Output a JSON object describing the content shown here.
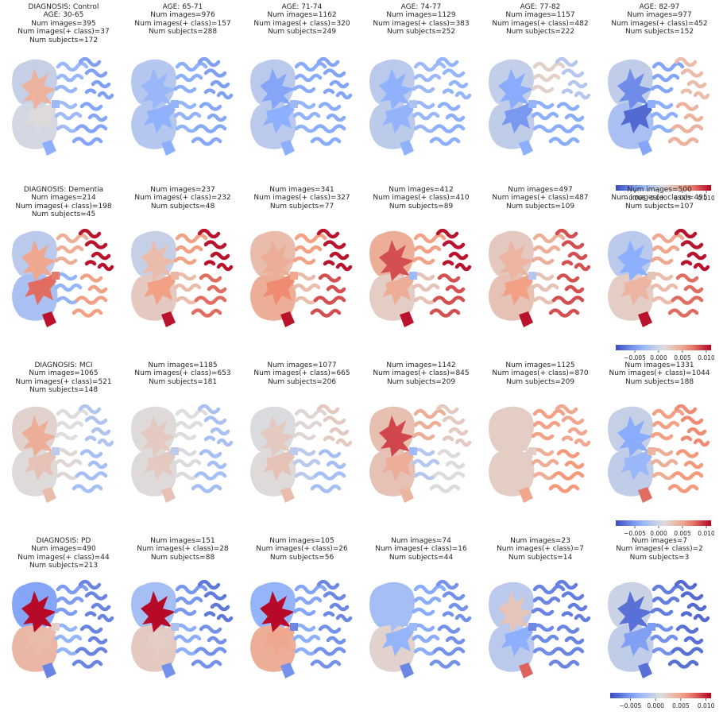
{
  "chart_data": {
    "type": "heatmap",
    "colormap": "coolwarm",
    "colormap_range": [
      -0.009,
      0.011
    ],
    "colorbar_ticks": [
      "−0.005",
      "0.000",
      "0.005",
      "0.010"
    ],
    "colorbar_tick_values": [
      -0.005,
      0.0,
      0.005,
      0.01
    ],
    "regions": [
      "front_lobe",
      "back_lobe",
      "ventricle_top",
      "ventricle_bottom",
      "cortex_upper_left",
      "cortex_upper_right",
      "cortex_lower_left",
      "cortex_lower_right",
      "bottom_tail",
      "center_spot"
    ],
    "rows": [
      {
        "diagnosis": "Control",
        "panels": [
          {
            "title_lines": [
              "DIAGNOSIS: Control",
              "AGE: 30-65",
              "Num images=395",
              "Num images(+ class)=37",
              "Num subjects=172"
            ],
            "values": {
              "front_lobe": -0.0005,
              "back_lobe": 0.0003,
              "ventricle_top": 0.0042,
              "ventricle_bottom": 0.0012,
              "cortex_upper_left": -0.0032,
              "cortex_upper_right": -0.0048,
              "cortex_lower_left": -0.0028,
              "cortex_lower_right": -0.0045,
              "bottom_tail": -0.004,
              "center_spot": -0.003
            }
          },
          {
            "title_lines": [
              "AGE: 65-71",
              "Num images=976",
              "Num images(+ class)=157",
              "Num subjects=288"
            ],
            "values": {
              "front_lobe": -0.0015,
              "back_lobe": -0.0015,
              "ventricle_top": -0.0032,
              "ventricle_bottom": -0.0038,
              "cortex_upper_left": -0.004,
              "cortex_upper_right": -0.0048,
              "cortex_lower_left": -0.0035,
              "cortex_lower_right": -0.0044,
              "bottom_tail": -0.004,
              "center_spot": -0.0035
            }
          },
          {
            "title_lines": [
              "AGE: 71-74",
              "Num images=1162",
              "Num images(+ class)=320",
              "Num subjects=249"
            ],
            "values": {
              "front_lobe": -0.0012,
              "back_lobe": -0.0012,
              "ventricle_top": -0.0045,
              "ventricle_bottom": -0.004,
              "cortex_upper_left": -0.0042,
              "cortex_upper_right": -0.0046,
              "cortex_lower_left": -0.0036,
              "cortex_lower_right": -0.0042,
              "bottom_tail": -0.004,
              "center_spot": -0.003
            }
          },
          {
            "title_lines": [
              "AGE: 74-77",
              "Num images=1129",
              "Num images(+ class)=383",
              "Num subjects=252"
            ],
            "values": {
              "front_lobe": -0.0012,
              "back_lobe": -0.001,
              "ventricle_top": -0.0038,
              "ventricle_bottom": -0.0036,
              "cortex_upper_left": -0.003,
              "cortex_upper_right": -0.0035,
              "cortex_lower_left": -0.0032,
              "cortex_lower_right": -0.004,
              "bottom_tail": -0.0038,
              "center_spot": -0.002
            }
          },
          {
            "title_lines": [
              "AGE: 77-82",
              "Num images=1157",
              "Num images(+ class)=482",
              "Num subjects=222"
            ],
            "values": {
              "front_lobe": -0.0006,
              "back_lobe": -0.0008,
              "ventricle_top": -0.0042,
              "ventricle_bottom": -0.0052,
              "cortex_upper_left": 0.002,
              "cortex_upper_right": -0.0015,
              "cortex_lower_left": -0.004,
              "cortex_lower_right": -0.0042,
              "bottom_tail": -0.004,
              "center_spot": -0.0035
            }
          },
          {
            "title_lines": [
              "AGE: 82-97",
              "Num images=977",
              "Num images(+ class)=452",
              "Num subjects=152"
            ],
            "values": {
              "front_lobe": -0.0008,
              "back_lobe": -0.0022,
              "ventricle_top": -0.0058,
              "ventricle_bottom": -0.0075,
              "cortex_upper_left": -0.0045,
              "cortex_upper_right": 0.0035,
              "cortex_lower_left": -0.004,
              "cortex_lower_right": 0.0042,
              "bottom_tail": -0.0045,
              "center_spot": -0.004
            }
          }
        ]
      },
      {
        "diagnosis": "Dementia",
        "panels": [
          {
            "title_lines": [
              "DIAGNOSIS: Dementia",
              "Num images=214",
              "Num images(+ class)=198",
              "Num subjects=45"
            ],
            "values": {
              "front_lobe": -0.0012,
              "back_lobe": -0.0022,
              "ventricle_top": 0.005,
              "ventricle_bottom": 0.0075,
              "cortex_upper_left": 0.0045,
              "cortex_upper_right": 0.0105,
              "cortex_lower_left": -0.0035,
              "cortex_lower_right": 0.0055,
              "bottom_tail": 0.0105,
              "center_spot": 0.007
            }
          },
          {
            "title_lines": [
              "Num images=237",
              "Num images(+ class)=232",
              "Num subjects=48"
            ],
            "values": {
              "front_lobe": -0.0005,
              "back_lobe": 0.0025,
              "ventricle_top": 0.0035,
              "ventricle_bottom": 0.0055,
              "cortex_upper_left": 0.0055,
              "cortex_upper_right": 0.0105,
              "cortex_lower_left": 0.0035,
              "cortex_lower_right": 0.0075,
              "bottom_tail": 0.0105,
              "center_spot": 0.004
            }
          },
          {
            "title_lines": [
              "Num images=341",
              "Num images(+ class)=327",
              "Num subjects=77"
            ],
            "values": {
              "front_lobe": 0.0035,
              "back_lobe": 0.0045,
              "ventricle_top": 0.0045,
              "ventricle_bottom": 0.0065,
              "cortex_upper_left": 0.0055,
              "cortex_upper_right": 0.0105,
              "cortex_lower_left": 0.0035,
              "cortex_lower_right": 0.0085,
              "bottom_tail": 0.0105,
              "center_spot": 0.005
            }
          },
          {
            "title_lines": [
              "Num images=412",
              "Num images(+ class)=410",
              "Num subjects=89"
            ],
            "values": {
              "front_lobe": 0.0045,
              "back_lobe": 0.0022,
              "ventricle_top": 0.0085,
              "ventricle_bottom": 0.0045,
              "cortex_upper_left": 0.0055,
              "cortex_upper_right": 0.0105,
              "cortex_lower_left": 0.003,
              "cortex_lower_right": 0.0085,
              "bottom_tail": 0.0105,
              "center_spot": -0.003
            }
          },
          {
            "title_lines": [
              "Num images=497",
              "Num images(+ class)=487",
              "Num subjects=109"
            ],
            "values": {
              "front_lobe": 0.0025,
              "back_lobe": 0.003,
              "ventricle_top": 0.004,
              "ventricle_bottom": 0.0055,
              "cortex_upper_left": 0.0045,
              "cortex_upper_right": 0.0085,
              "cortex_lower_left": 0.003,
              "cortex_lower_right": 0.0085,
              "bottom_tail": 0.0105,
              "center_spot": -0.0015
            }
          },
          {
            "title_lines": [
              "Num images=500",
              "Num images(+ class)=495",
              "Num subjects=107"
            ],
            "values": {
              "front_lobe": -0.0012,
              "back_lobe": 0.0022,
              "ventricle_top": -0.004,
              "ventricle_bottom": 0.004,
              "cortex_upper_left": 0.005,
              "cortex_upper_right": 0.0105,
              "cortex_lower_left": 0.0035,
              "cortex_lower_right": 0.0075,
              "bottom_tail": 0.0105,
              "center_spot": 0.003
            }
          }
        ]
      },
      {
        "diagnosis": "MCI",
        "panels": [
          {
            "title_lines": [
              "DIAGNOSIS: MCI",
              "Num images=1065",
              "Num images(+ class)=521",
              "Num subjects=148"
            ],
            "values": {
              "front_lobe": 0.0018,
              "back_lobe": 0.0012,
              "ventricle_top": 0.0045,
              "ventricle_bottom": 0.003,
              "cortex_upper_left": 0.001,
              "cortex_upper_right": -0.0018,
              "cortex_lower_left": 0.0015,
              "cortex_lower_right": -0.0025,
              "bottom_tail": 0.0035,
              "center_spot": -0.001
            }
          },
          {
            "title_lines": [
              "Num images=1185",
              "Num images(+ class)=653",
              "Num subjects=181"
            ],
            "values": {
              "front_lobe": 0.0012,
              "back_lobe": 0.0012,
              "ventricle_top": 0.0025,
              "ventricle_bottom": 0.0025,
              "cortex_upper_left": 0.001,
              "cortex_upper_right": -0.0022,
              "cortex_lower_left": 0.0008,
              "cortex_lower_right": -0.0025,
              "bottom_tail": 0.003,
              "center_spot": -0.001
            }
          },
          {
            "title_lines": [
              "Num images=1077",
              "Num images(+ class)=665",
              "Num subjects=206"
            ],
            "values": {
              "front_lobe": 0.0008,
              "back_lobe": 0.0012,
              "ventricle_top": 0.0025,
              "ventricle_bottom": 0.003,
              "cortex_upper_left": 0.0015,
              "cortex_upper_right": 0.0025,
              "cortex_lower_left": -0.0012,
              "cortex_lower_right": -0.0025,
              "bottom_tail": 0.0035,
              "center_spot": -0.001
            }
          },
          {
            "title_lines": [
              "Num images=1142",
              "Num images(+ class)=845",
              "Num subjects=209"
            ],
            "values": {
              "front_lobe": 0.0032,
              "back_lobe": 0.003,
              "ventricle_top": 0.0088,
              "ventricle_bottom": 0.0045,
              "cortex_upper_left": 0.0045,
              "cortex_upper_right": 0.0025,
              "cortex_lower_left": -0.0015,
              "cortex_lower_right": 0.0012,
              "bottom_tail": 0.004,
              "center_spot": -0.003
            }
          },
          {
            "title_lines": [
              "Num images=1125",
              "Num images(+ class)=870",
              "Num subjects=209"
            ],
            "values": {
              "front_lobe": 0.0022,
              "back_lobe": 0.0022,
              "ventricle_top": 0.0022,
              "ventricle_bottom": 0.0022,
              "cortex_upper_left": 0.0055,
              "cortex_upper_right": 0.005,
              "cortex_lower_left": 0.0045,
              "cortex_lower_right": 0.006,
              "bottom_tail": 0.005,
              "center_spot": 0.0022
            }
          },
          {
            "title_lines": [
              "Num images=1331",
              "Num images(+ class)=1044",
              "Num subjects=188"
            ],
            "values": {
              "front_lobe": -0.0005,
              "back_lobe": -0.0008,
              "ventricle_top": -0.0042,
              "ventricle_bottom": -0.0032,
              "cortex_upper_left": 0.0055,
              "cortex_upper_right": 0.0065,
              "cortex_lower_left": 0.0045,
              "cortex_lower_right": 0.006,
              "bottom_tail": 0.0075,
              "center_spot": 0.004
            }
          }
        ]
      },
      {
        "diagnosis": "PD",
        "panels": [
          {
            "title_lines": [
              "DIAGNOSIS: PD",
              "Num images=490",
              "Num images(+ class)=44",
              "Num subjects=213"
            ],
            "values": {
              "front_lobe": -0.0045,
              "back_lobe": 0.0038,
              "ventricle_top": 0.0108,
              "ventricle_bottom": 0.0035,
              "cortex_upper_left": -0.005,
              "cortex_upper_right": -0.0062,
              "cortex_lower_left": -0.0035,
              "cortex_lower_right": -0.0062,
              "bottom_tail": -0.0062,
              "center_spot": 0.002
            }
          },
          {
            "title_lines": [
              "Num images=151",
              "Num images(+ class)=28",
              "Num subjects=88"
            ],
            "values": {
              "front_lobe": -0.0025,
              "back_lobe": 0.0025,
              "ventricle_top": 0.0108,
              "ventricle_bottom": 0.0022,
              "cortex_upper_left": -0.0052,
              "cortex_upper_right": -0.0068,
              "cortex_lower_left": -0.004,
              "cortex_lower_right": -0.0055,
              "bottom_tail": -0.0055,
              "center_spot": -0.002
            }
          },
          {
            "title_lines": [
              "Num images=105",
              "Num images(+ class)=26",
              "Num subjects=56"
            ],
            "values": {
              "front_lobe": -0.0035,
              "back_lobe": 0.0045,
              "ventricle_top": 0.0108,
              "ventricle_bottom": 0.005,
              "cortex_upper_left": -0.0045,
              "cortex_upper_right": -0.006,
              "cortex_lower_left": -0.004,
              "cortex_lower_right": -0.0055,
              "bottom_tail": -0.0055,
              "center_spot": -0.006
            }
          },
          {
            "title_lines": [
              "Num images=74",
              "Num images(+ class)=16",
              "Num subjects=44"
            ],
            "values": {
              "front_lobe": -0.0025,
              "back_lobe": 0.0018,
              "ventricle_top": -0.0025,
              "ventricle_bottom": -0.0035,
              "cortex_upper_left": -0.0042,
              "cortex_upper_right": -0.0055,
              "cortex_lower_left": -0.0042,
              "cortex_lower_right": -0.0055,
              "bottom_tail": -0.006,
              "center_spot": -0.003
            }
          },
          {
            "title_lines": [
              "Num images=23",
              "Num images(+ class)=7",
              "Num subjects=14"
            ],
            "values": {
              "front_lobe": -0.0012,
              "back_lobe": -0.0012,
              "ventricle_top": 0.0028,
              "ventricle_bottom": -0.004,
              "cortex_upper_left": -0.0062,
              "cortex_upper_right": -0.0065,
              "cortex_lower_left": -0.0058,
              "cortex_lower_right": -0.0062,
              "bottom_tail": 0.0078,
              "center_spot": -0.006
            }
          },
          {
            "title_lines": [
              "Num images=7",
              "Num images(+ class)=2",
              "Num subjects=3"
            ],
            "values": {
              "front_lobe": -0.0002,
              "back_lobe": -0.0008,
              "ventricle_top": -0.0072,
              "ventricle_bottom": -0.0048,
              "cortex_upper_left": -0.0065,
              "cortex_upper_right": -0.0075,
              "cortex_lower_left": -0.0055,
              "cortex_lower_right": -0.0072,
              "bottom_tail": -0.0072,
              "center_spot": -0.005
            }
          }
        ]
      }
    ]
  }
}
